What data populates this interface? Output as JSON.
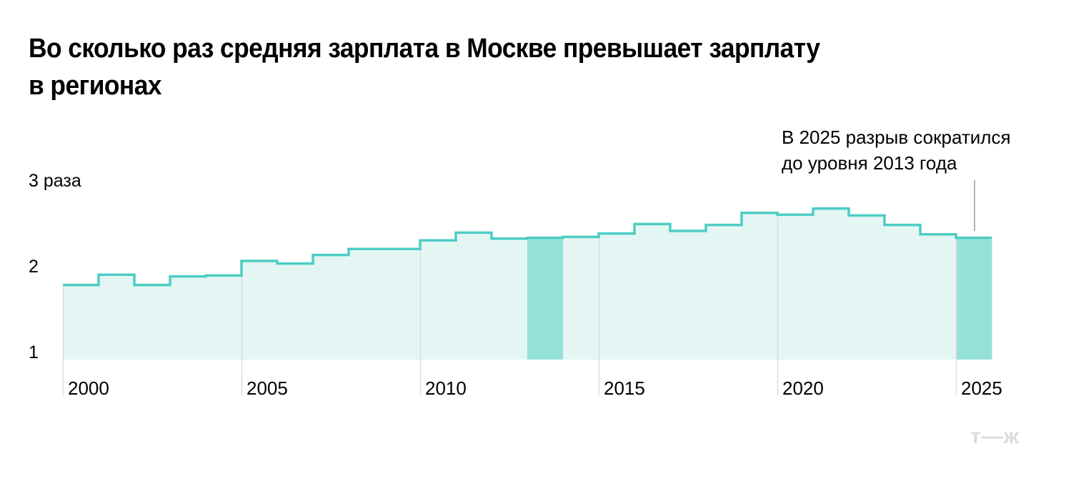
{
  "title": {
    "line1": "Во сколько раз средняя зарплата в Москве превышает зарплату",
    "line2": "в регионах"
  },
  "y_axis": {
    "labels": [
      {
        "value": 3,
        "text": "3 раза"
      },
      {
        "value": 2,
        "text": "2"
      },
      {
        "value": 1,
        "text": "1"
      }
    ]
  },
  "x_axis": {
    "labels": [
      "2000",
      "2005",
      "2010",
      "2015",
      "2020",
      "2025"
    ]
  },
  "annotation": {
    "line1": "В 2025 разрыв сократился",
    "line2": "до уровня 2013 года"
  },
  "logo": "т—ж",
  "colors": {
    "line": "#4ecdc4",
    "fill": "#e3f6f4",
    "highlight": "#95e1da",
    "gridline": "#dddddd",
    "annotation_line": "#999999",
    "logo": "#dcdcdc"
  },
  "chart_data": {
    "type": "area",
    "subtype": "step",
    "title": "Во сколько раз средняя зарплата в Москве превышает зарплату в регионах",
    "xlabel": "",
    "ylabel": "раз",
    "ylim": [
      1,
      3
    ],
    "yticks": [
      1,
      2,
      3
    ],
    "xticks": [
      2000,
      2005,
      2010,
      2015,
      2020,
      2025
    ],
    "grid": false,
    "legend": null,
    "x": [
      2000,
      2001,
      2002,
      2003,
      2004,
      2005,
      2006,
      2007,
      2008,
      2009,
      2010,
      2011,
      2012,
      2013,
      2014,
      2015,
      2016,
      2017,
      2018,
      2019,
      2020,
      2021,
      2022,
      2023,
      2024,
      2025
    ],
    "values": [
      1.87,
      1.99,
      1.87,
      1.97,
      1.98,
      2.15,
      2.12,
      2.22,
      2.29,
      2.29,
      2.39,
      2.48,
      2.41,
      2.42,
      2.43,
      2.47,
      2.58,
      2.5,
      2.57,
      2.71,
      2.69,
      2.76,
      2.68,
      2.57,
      2.46,
      2.42
    ],
    "highlighted": [
      2013,
      2025
    ],
    "annotations": [
      {
        "x": 2025,
        "text": "В 2025 разрыв сократился до уровня 2013 года"
      }
    ]
  }
}
